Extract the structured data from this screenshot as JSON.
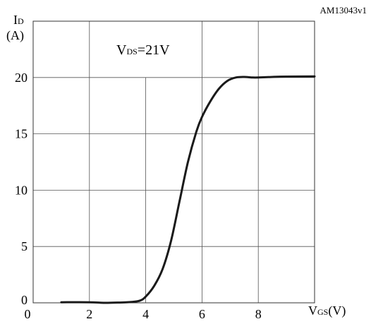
{
  "chart_data": {
    "type": "line",
    "doc_id": "AM13043v1",
    "ylabel": {
      "main": "I",
      "sub": "D",
      "unit": "(A)"
    },
    "xlabel": {
      "main": "V",
      "sub": "GS",
      "unit": "(V)"
    },
    "annotation": {
      "main": "V",
      "sub": "DS",
      "rest": "=21V"
    },
    "xlim": [
      0,
      10
    ],
    "ylim": [
      0,
      25
    ],
    "x_ticks": [
      {
        "value": 0,
        "label": "0"
      },
      {
        "value": 2,
        "label": "2"
      },
      {
        "value": 4,
        "label": "4"
      },
      {
        "value": 6,
        "label": "6"
      },
      {
        "value": 8,
        "label": "8"
      }
    ],
    "y_ticks": [
      {
        "value": 0,
        "label": "0"
      },
      {
        "value": 5,
        "label": "5"
      },
      {
        "value": 10,
        "label": "10"
      },
      {
        "value": 15,
        "label": "15"
      },
      {
        "value": 20,
        "label": "20"
      }
    ],
    "grid": true,
    "series": [
      {
        "color": "#1a1a1a",
        "points": [
          [
            1.0,
            0.05
          ],
          [
            2.0,
            0.05
          ],
          [
            2.5,
            0.0
          ],
          [
            3.0,
            0.02
          ],
          [
            3.5,
            0.08
          ],
          [
            3.8,
            0.2
          ],
          [
            4.0,
            0.55
          ],
          [
            4.3,
            1.5
          ],
          [
            4.6,
            3.0
          ],
          [
            4.9,
            5.5
          ],
          [
            5.2,
            9.0
          ],
          [
            5.5,
            12.5
          ],
          [
            5.8,
            15.2
          ],
          [
            6.0,
            16.5
          ],
          [
            6.3,
            17.9
          ],
          [
            6.6,
            19.0
          ],
          [
            6.9,
            19.7
          ],
          [
            7.2,
            20.0
          ],
          [
            7.5,
            20.05
          ],
          [
            7.8,
            20.0
          ],
          [
            8.0,
            20.0
          ],
          [
            8.5,
            20.05
          ],
          [
            9.0,
            20.08
          ],
          [
            10.0,
            20.1
          ]
        ]
      }
    ]
  }
}
